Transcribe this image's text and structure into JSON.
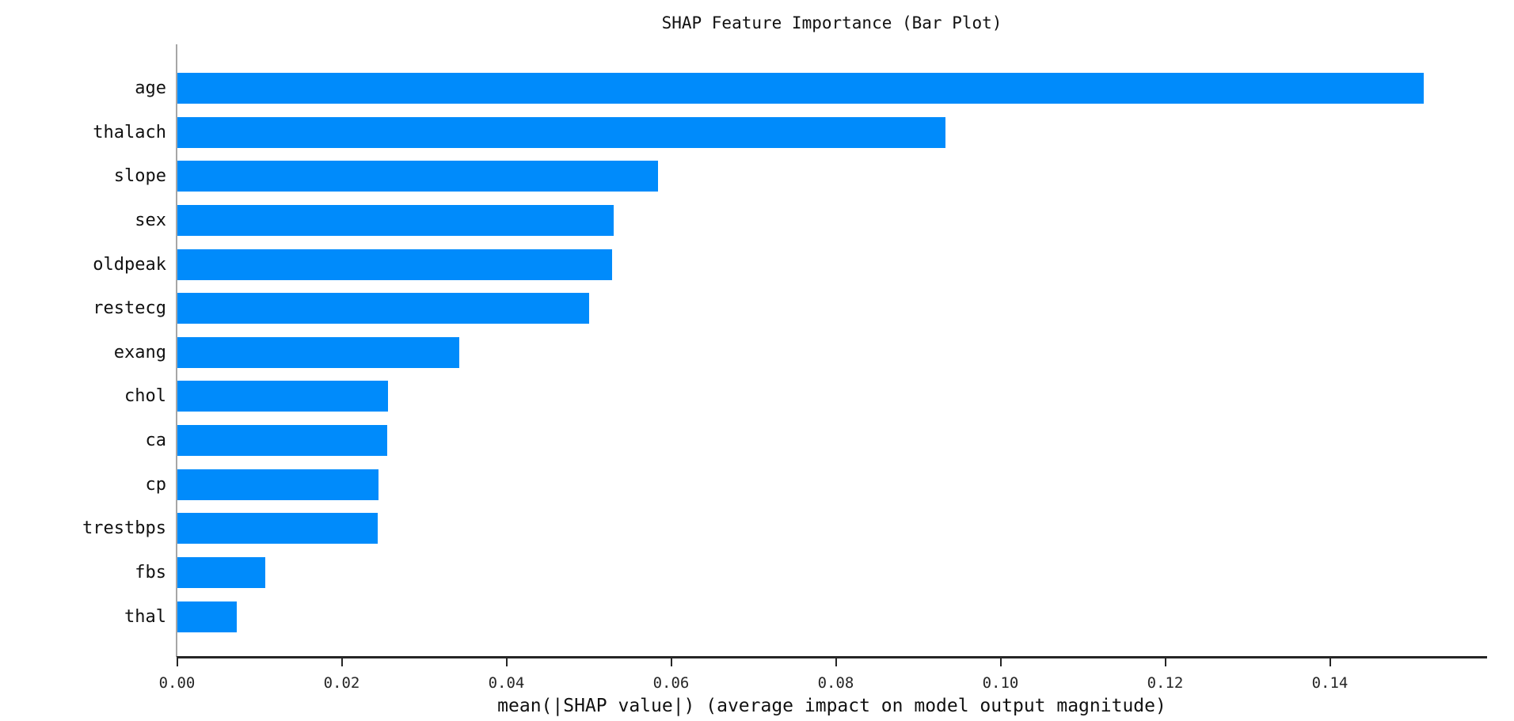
{
  "chart_data": {
    "type": "bar",
    "orientation": "horizontal",
    "title": "SHAP Feature Importance (Bar Plot)",
    "xlabel": "mean(|SHAP value|) (average impact on model output magnitude)",
    "ylabel": "",
    "categories": [
      "age",
      "thalach",
      "slope",
      "sex",
      "oldpeak",
      "restecg",
      "exang",
      "chol",
      "ca",
      "cp",
      "trestbps",
      "fbs",
      "thal"
    ],
    "values": [
      0.1513,
      0.0933,
      0.0584,
      0.053,
      0.0528,
      0.05,
      0.0342,
      0.0256,
      0.0255,
      0.0244,
      0.0243,
      0.0107,
      0.0072
    ],
    "xticks": [
      {
        "value": 0.0,
        "label": "0.00"
      },
      {
        "value": 0.02,
        "label": "0.02"
      },
      {
        "value": 0.04,
        "label": "0.04"
      },
      {
        "value": 0.06,
        "label": "0.06"
      },
      {
        "value": 0.08,
        "label": "0.08"
      },
      {
        "value": 0.1,
        "label": "0.10"
      },
      {
        "value": 0.12,
        "label": "0.12"
      },
      {
        "value": 0.14,
        "label": "0.14"
      }
    ],
    "xlim": [
      0,
      0.159
    ],
    "grid": false,
    "legend": null,
    "colors": {
      "bar": "#008bfb",
      "y_spine": "#a6a6a6",
      "x_spine": "#262626",
      "text": "#111111",
      "background": "#ffffff"
    }
  }
}
